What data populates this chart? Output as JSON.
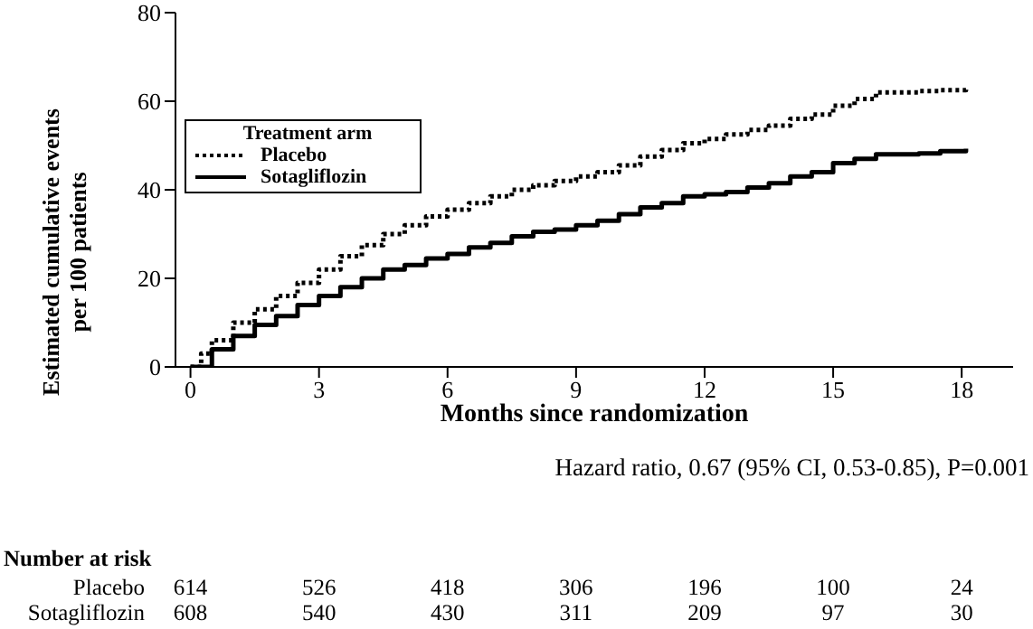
{
  "chart_data": {
    "type": "step",
    "xlabel": "Months since randomization",
    "ylabel": "Estimated cumulative events\nper 100 patients",
    "legend_title": "Treatment arm",
    "legend": "top left",
    "grid": false,
    "marker": "none",
    "xlim": [
      -0.35,
      19.2
    ],
    "xticks": [
      0,
      3,
      6,
      9,
      12,
      15,
      18
    ],
    "ylim": [
      0,
      80
    ],
    "yticks": [
      0,
      20,
      40,
      60,
      80
    ],
    "series": [
      {
        "name": "Placebo",
        "color": "#000000",
        "line_style": "dotted",
        "x": [
          0,
          0.25,
          0.5,
          1,
          1.5,
          2,
          2.5,
          3,
          3.5,
          4,
          4.5,
          5,
          5.5,
          6,
          6.5,
          7,
          7.5,
          8,
          8.5,
          9,
          9.5,
          10,
          10.5,
          11,
          11.5,
          12,
          12.5,
          13,
          13.5,
          14,
          14.5,
          15,
          15.5,
          16,
          16.5,
          17,
          17.5,
          18.1
        ],
        "values": [
          0,
          3,
          6,
          10,
          13,
          16,
          19,
          22,
          25,
          27.5,
          30,
          32,
          34,
          35.5,
          37,
          38.5,
          40,
          41,
          42,
          43,
          44,
          45.5,
          47.5,
          49,
          50.5,
          51.5,
          52.5,
          53.5,
          54.5,
          56,
          57,
          59,
          60.5,
          62,
          62,
          62.3,
          62.5,
          63.3
        ]
      },
      {
        "name": "Sotagliflozin",
        "color": "#000000",
        "line_style": "solid",
        "x": [
          0,
          0.5,
          1,
          1.5,
          2,
          2.5,
          3,
          3.5,
          4,
          4.5,
          5,
          5.5,
          6,
          6.5,
          7,
          7.5,
          8,
          8.5,
          9,
          9.5,
          10,
          10.5,
          11,
          11.5,
          12,
          12.5,
          13,
          13.5,
          14,
          14.5,
          15,
          15.5,
          16,
          16.5,
          17,
          17.5,
          18.1
        ],
        "values": [
          0,
          4,
          7,
          9.5,
          11.5,
          14,
          16,
          18,
          20,
          22,
          23,
          24.5,
          25.5,
          27,
          28,
          29.5,
          30.5,
          31,
          32,
          33,
          34.5,
          36,
          37,
          38.5,
          39,
          39.5,
          40.5,
          41.5,
          43,
          44,
          46,
          47,
          48,
          48,
          48.2,
          48.7,
          49.3
        ]
      }
    ],
    "annotations": [
      "Hazard ratio, 0.67 (95% CI, 0.53-0.85), P=0.001",
      "Number at risk",
      "Placebo",
      "614",
      "526",
      "418",
      "306",
      "196",
      "100",
      "24",
      "Sotagliflozin",
      "608",
      "540",
      "430",
      "311",
      "209",
      "97",
      "30"
    ]
  }
}
